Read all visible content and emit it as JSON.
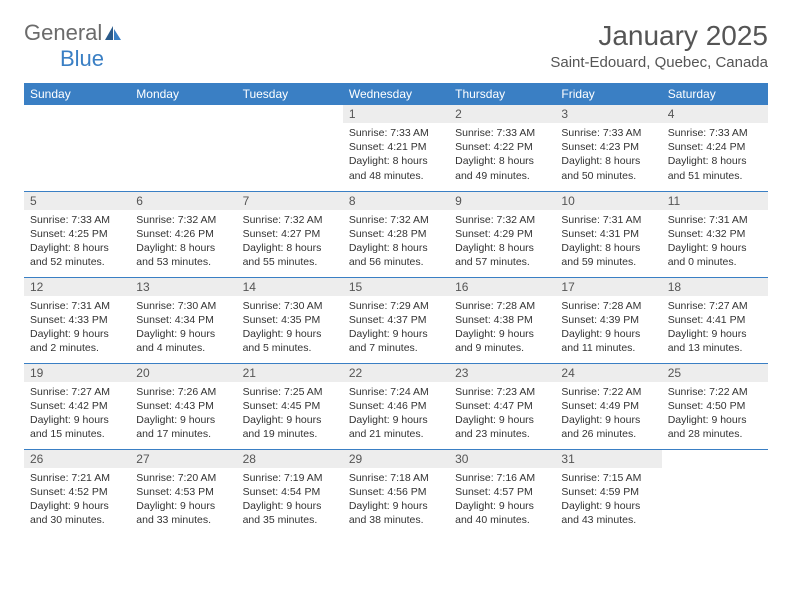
{
  "logo": {
    "general": "General",
    "blue": "Blue"
  },
  "header": {
    "month_title": "January 2025",
    "location": "Saint-Edouard, Quebec, Canada"
  },
  "colors": {
    "header_bg": "#3a7fc4",
    "header_text": "#ffffff",
    "daynum_bg": "#ededed",
    "text": "#333333",
    "logo_general": "#6b6b6b",
    "logo_blue": "#3a7fc4"
  },
  "weekdays": [
    "Sunday",
    "Monday",
    "Tuesday",
    "Wednesday",
    "Thursday",
    "Friday",
    "Saturday"
  ],
  "weeks": [
    [
      null,
      null,
      null,
      {
        "n": "1",
        "sr": "Sunrise: 7:33 AM",
        "ss": "Sunset: 4:21 PM",
        "d1": "Daylight: 8 hours",
        "d2": "and 48 minutes."
      },
      {
        "n": "2",
        "sr": "Sunrise: 7:33 AM",
        "ss": "Sunset: 4:22 PM",
        "d1": "Daylight: 8 hours",
        "d2": "and 49 minutes."
      },
      {
        "n": "3",
        "sr": "Sunrise: 7:33 AM",
        "ss": "Sunset: 4:23 PM",
        "d1": "Daylight: 8 hours",
        "d2": "and 50 minutes."
      },
      {
        "n": "4",
        "sr": "Sunrise: 7:33 AM",
        "ss": "Sunset: 4:24 PM",
        "d1": "Daylight: 8 hours",
        "d2": "and 51 minutes."
      }
    ],
    [
      {
        "n": "5",
        "sr": "Sunrise: 7:33 AM",
        "ss": "Sunset: 4:25 PM",
        "d1": "Daylight: 8 hours",
        "d2": "and 52 minutes."
      },
      {
        "n": "6",
        "sr": "Sunrise: 7:32 AM",
        "ss": "Sunset: 4:26 PM",
        "d1": "Daylight: 8 hours",
        "d2": "and 53 minutes."
      },
      {
        "n": "7",
        "sr": "Sunrise: 7:32 AM",
        "ss": "Sunset: 4:27 PM",
        "d1": "Daylight: 8 hours",
        "d2": "and 55 minutes."
      },
      {
        "n": "8",
        "sr": "Sunrise: 7:32 AM",
        "ss": "Sunset: 4:28 PM",
        "d1": "Daylight: 8 hours",
        "d2": "and 56 minutes."
      },
      {
        "n": "9",
        "sr": "Sunrise: 7:32 AM",
        "ss": "Sunset: 4:29 PM",
        "d1": "Daylight: 8 hours",
        "d2": "and 57 minutes."
      },
      {
        "n": "10",
        "sr": "Sunrise: 7:31 AM",
        "ss": "Sunset: 4:31 PM",
        "d1": "Daylight: 8 hours",
        "d2": "and 59 minutes."
      },
      {
        "n": "11",
        "sr": "Sunrise: 7:31 AM",
        "ss": "Sunset: 4:32 PM",
        "d1": "Daylight: 9 hours",
        "d2": "and 0 minutes."
      }
    ],
    [
      {
        "n": "12",
        "sr": "Sunrise: 7:31 AM",
        "ss": "Sunset: 4:33 PM",
        "d1": "Daylight: 9 hours",
        "d2": "and 2 minutes."
      },
      {
        "n": "13",
        "sr": "Sunrise: 7:30 AM",
        "ss": "Sunset: 4:34 PM",
        "d1": "Daylight: 9 hours",
        "d2": "and 4 minutes."
      },
      {
        "n": "14",
        "sr": "Sunrise: 7:30 AM",
        "ss": "Sunset: 4:35 PM",
        "d1": "Daylight: 9 hours",
        "d2": "and 5 minutes."
      },
      {
        "n": "15",
        "sr": "Sunrise: 7:29 AM",
        "ss": "Sunset: 4:37 PM",
        "d1": "Daylight: 9 hours",
        "d2": "and 7 minutes."
      },
      {
        "n": "16",
        "sr": "Sunrise: 7:28 AM",
        "ss": "Sunset: 4:38 PM",
        "d1": "Daylight: 9 hours",
        "d2": "and 9 minutes."
      },
      {
        "n": "17",
        "sr": "Sunrise: 7:28 AM",
        "ss": "Sunset: 4:39 PM",
        "d1": "Daylight: 9 hours",
        "d2": "and 11 minutes."
      },
      {
        "n": "18",
        "sr": "Sunrise: 7:27 AM",
        "ss": "Sunset: 4:41 PM",
        "d1": "Daylight: 9 hours",
        "d2": "and 13 minutes."
      }
    ],
    [
      {
        "n": "19",
        "sr": "Sunrise: 7:27 AM",
        "ss": "Sunset: 4:42 PM",
        "d1": "Daylight: 9 hours",
        "d2": "and 15 minutes."
      },
      {
        "n": "20",
        "sr": "Sunrise: 7:26 AM",
        "ss": "Sunset: 4:43 PM",
        "d1": "Daylight: 9 hours",
        "d2": "and 17 minutes."
      },
      {
        "n": "21",
        "sr": "Sunrise: 7:25 AM",
        "ss": "Sunset: 4:45 PM",
        "d1": "Daylight: 9 hours",
        "d2": "and 19 minutes."
      },
      {
        "n": "22",
        "sr": "Sunrise: 7:24 AM",
        "ss": "Sunset: 4:46 PM",
        "d1": "Daylight: 9 hours",
        "d2": "and 21 minutes."
      },
      {
        "n": "23",
        "sr": "Sunrise: 7:23 AM",
        "ss": "Sunset: 4:47 PM",
        "d1": "Daylight: 9 hours",
        "d2": "and 23 minutes."
      },
      {
        "n": "24",
        "sr": "Sunrise: 7:22 AM",
        "ss": "Sunset: 4:49 PM",
        "d1": "Daylight: 9 hours",
        "d2": "and 26 minutes."
      },
      {
        "n": "25",
        "sr": "Sunrise: 7:22 AM",
        "ss": "Sunset: 4:50 PM",
        "d1": "Daylight: 9 hours",
        "d2": "and 28 minutes."
      }
    ],
    [
      {
        "n": "26",
        "sr": "Sunrise: 7:21 AM",
        "ss": "Sunset: 4:52 PM",
        "d1": "Daylight: 9 hours",
        "d2": "and 30 minutes."
      },
      {
        "n": "27",
        "sr": "Sunrise: 7:20 AM",
        "ss": "Sunset: 4:53 PM",
        "d1": "Daylight: 9 hours",
        "d2": "and 33 minutes."
      },
      {
        "n": "28",
        "sr": "Sunrise: 7:19 AM",
        "ss": "Sunset: 4:54 PM",
        "d1": "Daylight: 9 hours",
        "d2": "and 35 minutes."
      },
      {
        "n": "29",
        "sr": "Sunrise: 7:18 AM",
        "ss": "Sunset: 4:56 PM",
        "d1": "Daylight: 9 hours",
        "d2": "and 38 minutes."
      },
      {
        "n": "30",
        "sr": "Sunrise: 7:16 AM",
        "ss": "Sunset: 4:57 PM",
        "d1": "Daylight: 9 hours",
        "d2": "and 40 minutes."
      },
      {
        "n": "31",
        "sr": "Sunrise: 7:15 AM",
        "ss": "Sunset: 4:59 PM",
        "d1": "Daylight: 9 hours",
        "d2": "and 43 minutes."
      },
      null
    ]
  ]
}
